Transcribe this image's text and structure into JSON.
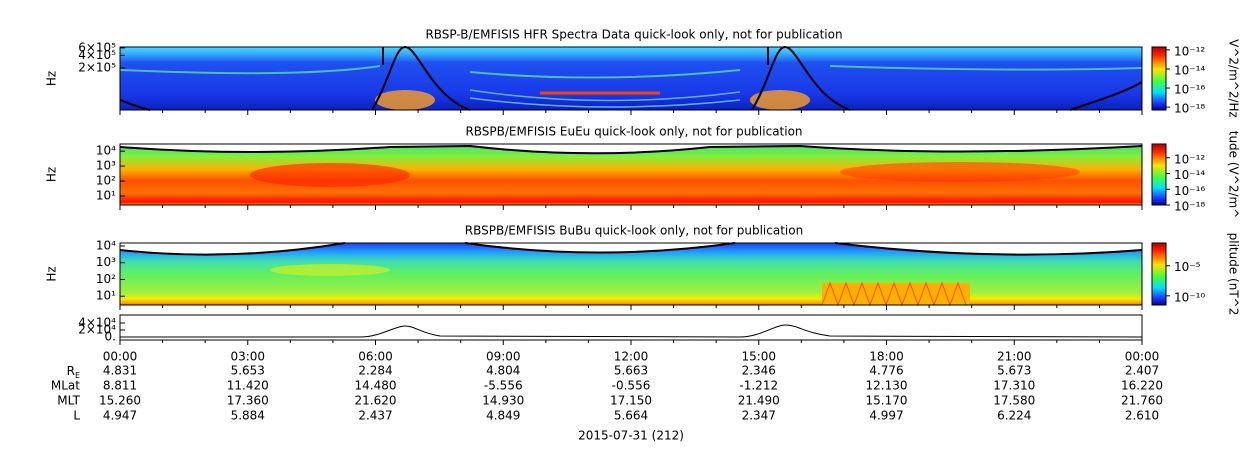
{
  "panels": [
    {
      "title": "RBSP-B/EMFISIS  HFR Spectra Data quick-look only, not for publication",
      "ylabel": "Hz",
      "log": true,
      "ylim": [
        20000,
        630000
      ],
      "yticks": [
        {
          "value": 600000,
          "label": "6×10⁵"
        },
        {
          "value": 400000,
          "label": "4×10⁵"
        },
        {
          "value": 200000,
          "label": "2×10⁵"
        }
      ],
      "colorbar": {
        "label": "V^2/m^2/Hz",
        "log": true,
        "clim": [
          5e-19,
          2e-12
        ],
        "ticks": [
          {
            "value": 1e-12,
            "label": "10⁻¹²"
          },
          {
            "value": 1e-14,
            "label": "10⁻¹⁴"
          },
          {
            "value": 1e-16,
            "label": "10⁻¹⁶"
          },
          {
            "value": 1e-18,
            "label": "10⁻¹⁸"
          }
        ]
      }
    },
    {
      "title": "RBSPB/EMFISIS  EuEu quick-look only, not for publication",
      "ylabel": "Hz",
      "log": true,
      "ylim": [
        2.5,
        30000
      ],
      "yticks": [
        {
          "value": 10000,
          "label": "10⁴"
        },
        {
          "value": 1000,
          "label": "10³"
        },
        {
          "value": 100,
          "label": "10²"
        },
        {
          "value": 10,
          "label": "10¹"
        }
      ],
      "colorbar": {
        "label": "tude (V^2/m^",
        "log": true,
        "clim": [
          1e-18,
          5.6e-11
        ],
        "ticks": [
          {
            "value": 1e-12,
            "label": "10⁻¹²"
          },
          {
            "value": 1e-14,
            "label": "10⁻¹⁴"
          },
          {
            "value": 1e-16,
            "label": "10⁻¹⁶"
          },
          {
            "value": 1e-18,
            "label": "10⁻¹⁸"
          }
        ]
      }
    },
    {
      "title": "RBSPB/EMFISIS  BuBu quick-look only, not for publication",
      "ylabel": "Hz",
      "log": true,
      "ylim": [
        3,
        15000
      ],
      "yticks": [
        {
          "value": 10000,
          "label": "10⁴"
        },
        {
          "value": 1000,
          "label": "10³"
        },
        {
          "value": 100,
          "label": "10²"
        },
        {
          "value": 10,
          "label": "10¹"
        }
      ],
      "colorbar": {
        "label": "plitude (nT^2",
        "log": true,
        "clim": [
          3e-12,
          0.06
        ],
        "ticks": [
          {
            "value": 1e-05,
            "label": "10⁻⁵"
          },
          {
            "value": 1e-10,
            "label": "10⁻¹⁰"
          }
        ]
      }
    },
    {
      "log": false,
      "ylim": [
        -8600,
        62900
      ],
      "yticks": [
        {
          "value": 40000,
          "label": "4×10⁴"
        },
        {
          "value": 20000,
          "label": "2×10⁴"
        },
        {
          "value": 0,
          "label": "0."
        }
      ]
    }
  ],
  "time_axis": {
    "xlim": [
      0,
      24
    ],
    "xticks": [
      {
        "value": 0,
        "label": "00:00"
      },
      {
        "value": 3,
        "label": "03:00"
      },
      {
        "value": 6,
        "label": "06:00"
      },
      {
        "value": 9,
        "label": "09:00"
      },
      {
        "value": 12,
        "label": "12:00"
      },
      {
        "value": 15,
        "label": "15:00"
      },
      {
        "value": 18,
        "label": "18:00"
      },
      {
        "value": 21,
        "label": "21:00"
      },
      {
        "value": 24,
        "label": "00:00"
      }
    ]
  },
  "ephemeris": [
    {
      "label": "R_E",
      "values": [
        "4.831",
        "5.653",
        "2.284",
        "4.804",
        "5.663",
        "2.346",
        "4.776",
        "5.673",
        "2.407"
      ]
    },
    {
      "label": "MLat",
      "values": [
        "8.811",
        "11.420",
        "14.480",
        "-5.556",
        "-0.556",
        "-1.212",
        "12.130",
        "17.310",
        "16.220"
      ]
    },
    {
      "label": "MLT",
      "values": [
        "15.260",
        "17.360",
        "21.620",
        "14.930",
        "17.150",
        "21.490",
        "15.170",
        "17.580",
        "21.760"
      ]
    },
    {
      "label": "L",
      "values": [
        "4.947",
        "5.884",
        "2.437",
        "4.849",
        "5.664",
        "2.347",
        "4.997",
        "6.224",
        "2.610"
      ]
    }
  ],
  "date": "2015-07-31 (212)"
}
